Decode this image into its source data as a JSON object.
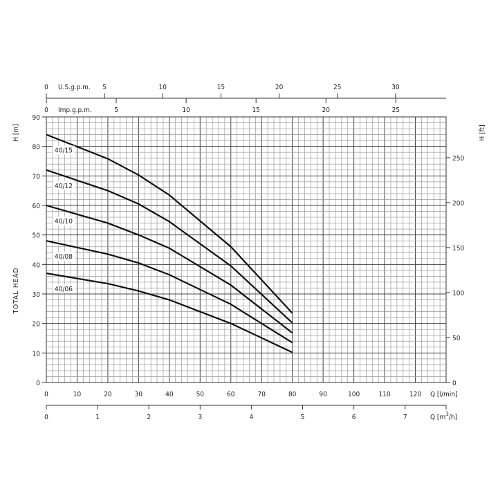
{
  "chart_data": {
    "type": "line",
    "x_unit_label": "Q [l/min]",
    "x2_unit_label": "Q [m³/h]",
    "x2_label_parts": {
      "q": "Q [m",
      "sup": "3",
      "tail": "/h]"
    },
    "top_axis_us": {
      "label": "U.S.g.p.m.",
      "ticks": [
        0,
        5,
        10,
        15,
        20,
        25,
        30
      ],
      "factor_l_per_min": 3.785
    },
    "top_axis_imp": {
      "label": "Imp.g.p.m.",
      "ticks": [
        0,
        5,
        10,
        15,
        20,
        25
      ],
      "factor_l_per_min": 4.546
    },
    "ylabel": "TOTAL HEAD",
    "y_unit_label": "H [m]",
    "y2_unit_label": "H [ft]",
    "xlim": [
      0,
      130
    ],
    "ylim": [
      0,
      90
    ],
    "x_ticks": [
      0,
      10,
      20,
      30,
      40,
      50,
      60,
      70,
      80,
      90,
      100,
      110,
      120
    ],
    "x2_ticks": [
      0,
      1,
      2,
      3,
      4,
      5,
      6,
      7
    ],
    "y_ticks": [
      0,
      10,
      20,
      30,
      40,
      50,
      60,
      70,
      80,
      90
    ],
    "y2_ticks": [
      0,
      50,
      100,
      150,
      200,
      250
    ],
    "grid": true,
    "x": [
      0,
      20,
      30,
      40,
      60,
      80
    ],
    "series": [
      {
        "name": "40/15",
        "values": [
          84,
          75.8,
          70.3,
          63.5,
          46,
          23.5
        ]
      },
      {
        "name": "40/12",
        "values": [
          72,
          65,
          60.5,
          54.5,
          39.5,
          20.2
        ]
      },
      {
        "name": "40/10",
        "values": [
          60,
          54,
          50,
          45.5,
          33,
          16.8
        ]
      },
      {
        "name": "40/08",
        "values": [
          48,
          43.5,
          40.5,
          36.5,
          26.5,
          13.5
        ]
      },
      {
        "name": "40/06",
        "values": [
          37,
          33.5,
          31,
          28,
          20,
          10.2
        ]
      }
    ]
  }
}
